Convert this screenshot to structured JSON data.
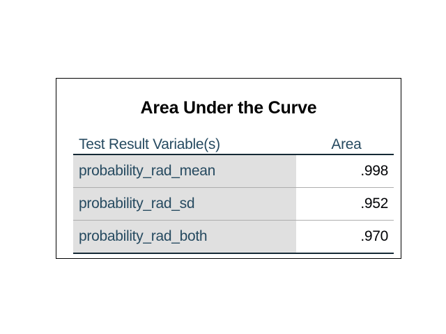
{
  "table": {
    "title": "Area Under the Curve",
    "headers": {
      "variable": "Test Result Variable(s)",
      "area": "Area"
    },
    "rows": [
      {
        "variable": "probability_rad_mean",
        "area": ".998"
      },
      {
        "variable": "probability_rad_sd",
        "area": ".952"
      },
      {
        "variable": "probability_rad_both",
        "area": ".970"
      }
    ]
  }
}
